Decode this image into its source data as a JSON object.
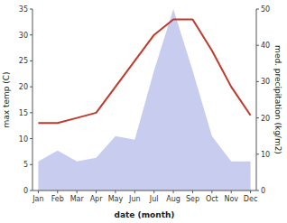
{
  "chart_data": {
    "type": "line",
    "xlabel": "date (month)",
    "ylabel": "max temp (C)",
    "y2label": "med. precipitation (kg/m2)",
    "categories": [
      "Jan",
      "Feb",
      "Mar",
      "Apr",
      "May",
      "Jun",
      "Jul",
      "Aug",
      "Sep",
      "Oct",
      "Nov",
      "Dec"
    ],
    "series": [
      {
        "type": "area",
        "color": "#b0b8e8",
        "axis": "y2",
        "values": [
          8,
          11,
          8,
          9,
          15,
          14,
          33,
          50,
          33,
          15,
          8,
          8
        ]
      },
      {
        "type": "line",
        "color": "#c0392b",
        "values": [
          13,
          13,
          14,
          15,
          20,
          25,
          30,
          33,
          33,
          27,
          20,
          14.5
        ]
      }
    ],
    "ylim": [
      0,
      35
    ],
    "yticks": [
      0,
      5,
      10,
      15,
      20,
      25,
      30,
      35
    ],
    "y2lim": [
      0,
      50
    ],
    "y2ticks": [
      0,
      10,
      20,
      30,
      40,
      50
    ],
    "grid": false
  }
}
